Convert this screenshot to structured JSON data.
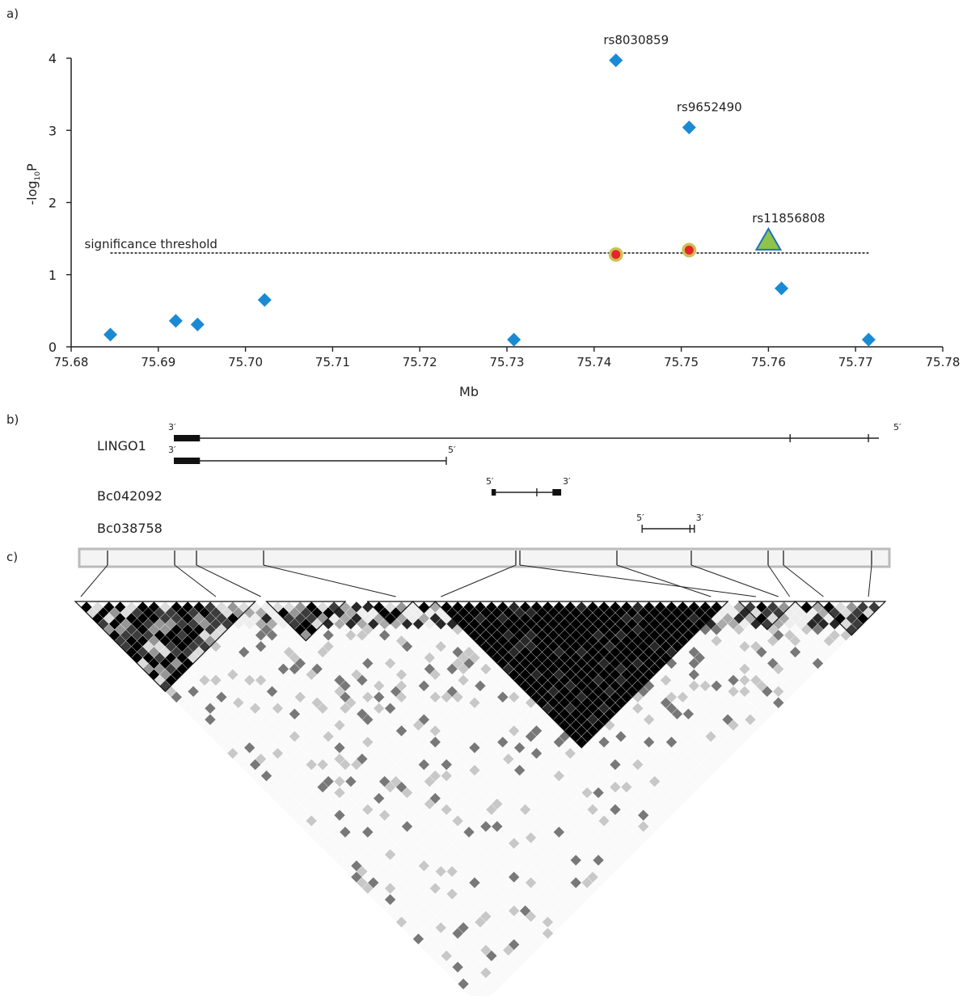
{
  "panel_labels": {
    "a": "a)",
    "b": "b)",
    "c": "c)"
  },
  "chart_data": {
    "type": "scatter",
    "xlabel": "Mb",
    "ylabel": "-log10P",
    "ylabel_parts": {
      "main": "-log",
      "sub": "10",
      "end": "P"
    },
    "xlim": [
      75.68,
      75.78
    ],
    "ylim": [
      0,
      4
    ],
    "x_ticks": [
      "75.68",
      "75.69",
      "75.70",
      "75.71",
      "75.72",
      "75.73",
      "75.74",
      "75.75",
      "75.76",
      "75.77",
      "75.78"
    ],
    "y_ticks": [
      "0",
      "1",
      "2",
      "3",
      "4"
    ],
    "threshold": {
      "label": "significance threshold",
      "value": 1.3,
      "x_start": 75.6845,
      "x_end": 75.7715
    },
    "series": [
      {
        "marker": "diamond",
        "color": "#1a8ad4",
        "points": [
          {
            "x": 75.6845,
            "y": 0.17
          },
          {
            "x": 75.692,
            "y": 0.36
          },
          {
            "x": 75.6945,
            "y": 0.31
          },
          {
            "x": 75.7022,
            "y": 0.65
          },
          {
            "x": 75.7308,
            "y": 0.1
          },
          {
            "x": 75.7425,
            "y": 3.97,
            "label": "rs8030859"
          },
          {
            "x": 75.7509,
            "y": 3.04,
            "label": "rs9652490"
          },
          {
            "x": 75.7615,
            "y": 0.81
          },
          {
            "x": 75.7715,
            "y": 0.1
          }
        ]
      },
      {
        "marker": "circle",
        "color": "#e8232a",
        "ring": "#c9c255",
        "points": [
          {
            "x": 75.7425,
            "y": 1.28
          },
          {
            "x": 75.7509,
            "y": 1.34
          }
        ]
      },
      {
        "marker": "triangle",
        "color": "#8fc34a",
        "stroke": "#1e73be",
        "points": [
          {
            "x": 75.76,
            "y": 1.48,
            "label": "rs11856808"
          }
        ]
      }
    ]
  },
  "genes": [
    {
      "name": "LINGO1",
      "tracks": [
        {
          "start": 75.6845,
          "end": 75.7655,
          "left": "3′",
          "right": "5′",
          "blocks": [
            [
              75.6845,
              75.6875
            ]
          ],
          "ticks": [
            75.7553,
            75.7643
          ]
        },
        {
          "start": 75.6845,
          "end": 75.7158,
          "left": "3′",
          "right": "5′",
          "blocks": [
            [
              75.6845,
              75.6875
            ]
          ],
          "ticks": [
            75.7158
          ]
        }
      ]
    },
    {
      "name": "Bc042092",
      "tracks": [
        {
          "start": 75.721,
          "end": 75.729,
          "left": "5′",
          "right": "3′",
          "blocks": [
            [
              75.721,
              75.7215
            ],
            [
              75.728,
              75.729
            ]
          ],
          "ticks": [
            75.7262
          ]
        }
      ]
    },
    {
      "name": "Bc038758",
      "tracks": [
        {
          "start": 75.7383,
          "end": 75.7443,
          "left": "5′",
          "right": "3′",
          "blocks": [],
          "ticks": [
            75.7383,
            75.7438,
            75.7443
          ]
        }
      ]
    }
  ],
  "ld_plot": {
    "snp_count": 72,
    "blocks": [
      [
        0,
        15
      ],
      [
        17,
        23
      ],
      [
        26,
        29
      ],
      [
        30,
        31
      ],
      [
        32,
        57
      ],
      [
        59,
        63
      ],
      [
        64,
        65
      ],
      [
        66,
        74
      ],
      [
        79,
        84
      ]
    ]
  }
}
